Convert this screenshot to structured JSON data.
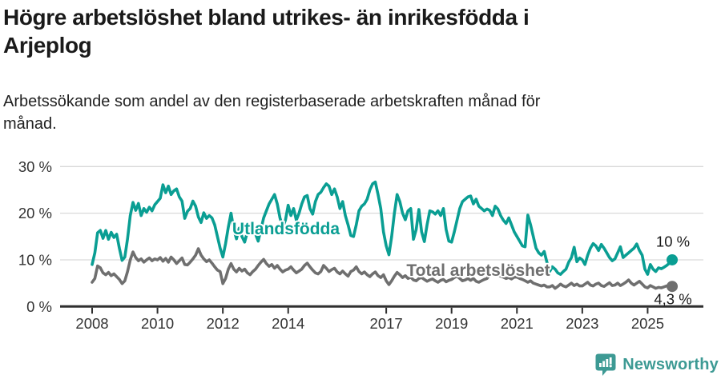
{
  "header": {
    "title": "Högre arbetslöshet bland utrikes- än inrikesfödda i\nArjeplog",
    "subtitle": "Arbetssökande som andel av den registerbaserade arbetskraften månad för\nmånad."
  },
  "chart_data": {
    "type": "line",
    "unit": "%",
    "frequency": "monthly",
    "x_start": "2008-01",
    "x_end": "2025-10",
    "ylim": [
      0,
      30
    ],
    "grid": "horizontal",
    "legend_position": "inline-labels",
    "y_ticks": [
      {
        "value": 0,
        "label": "0 %"
      },
      {
        "value": 10,
        "label": "10 %"
      },
      {
        "value": 20,
        "label": "20 %"
      },
      {
        "value": 30,
        "label": "30 %"
      }
    ],
    "x_ticks": [
      {
        "year": 2008,
        "label": "2008"
      },
      {
        "year": 2010,
        "label": "2010"
      },
      {
        "year": 2012,
        "label": "2012"
      },
      {
        "year": 2014,
        "label": "2014"
      },
      {
        "year": 2017,
        "label": "2017"
      },
      {
        "year": 2019,
        "label": "2019"
      },
      {
        "year": 2021,
        "label": "2021"
      },
      {
        "year": 2023,
        "label": "2023"
      },
      {
        "year": 2025,
        "label": "2025"
      }
    ],
    "series": [
      {
        "name": "Utlandsfödda",
        "color": "#0a9e93",
        "end_label": "10 %",
        "values": [
          9.0,
          11.5,
          15.8,
          16.3,
          14.6,
          16.3,
          14.4,
          15.9,
          14.8,
          15.5,
          12.5,
          9.9,
          10.6,
          14.5,
          19.5,
          22.3,
          20.6,
          22.1,
          19.5,
          21.0,
          20.2,
          21.3,
          20.5,
          21.8,
          22.5,
          23.2,
          26.1,
          24.4,
          25.8,
          24.0,
          24.8,
          25.2,
          23.5,
          22.6,
          18.9,
          20.4,
          21.0,
          22.6,
          21.5,
          19.2,
          18.0,
          20.1,
          18.9,
          19.5,
          19.0,
          17.5,
          15.0,
          12.5,
          10.6,
          13.5,
          17.0,
          20.0,
          16.5,
          14.5,
          16.8,
          15.0,
          13.8,
          16.0,
          17.0,
          15.5,
          15.5,
          14.0,
          16.5,
          19.0,
          20.5,
          22.0,
          23.0,
          24.0,
          22.0,
          19.0,
          17.0,
          18.5,
          21.7,
          19.5,
          21.0,
          18.5,
          20.0,
          22.0,
          23.5,
          23.8,
          21.0,
          19.8,
          22.5,
          24.0,
          24.5,
          25.5,
          26.3,
          25.8,
          24.0,
          25.2,
          23.5,
          21.0,
          22.5,
          19.5,
          17.5,
          15.2,
          15.0,
          17.5,
          20.5,
          21.5,
          22.0,
          23.0,
          25.0,
          26.3,
          26.7,
          24.0,
          21.0,
          16.0,
          13.0,
          11.1,
          15.0,
          20.0,
          24.0,
          22.5,
          20.0,
          18.6,
          20.5,
          21.0,
          14.4,
          16.5,
          20.8,
          16.0,
          13.9,
          17.5,
          20.5,
          20.3,
          19.8,
          20.5,
          19.5,
          21.0,
          16.5,
          14.0,
          13.8,
          16.0,
          18.5,
          21.0,
          22.5,
          23.0,
          23.5,
          23.7,
          22.0,
          23.0,
          21.5,
          21.0,
          20.5,
          20.9,
          20.6,
          19.5,
          21.5,
          20.9,
          19.5,
          18.5,
          17.8,
          19.0,
          17.5,
          16.0,
          15.0,
          14.0,
          13.0,
          12.8,
          19.6,
          17.5,
          15.0,
          12.5,
          11.5,
          11.0,
          11.8,
          9.5,
          7.5,
          8.5,
          8.0,
          7.2,
          6.9,
          7.5,
          8.0,
          9.5,
          10.5,
          12.7,
          9.6,
          10.4,
          10.0,
          9.0,
          11.0,
          12.5,
          13.5,
          13.0,
          12.0,
          13.3,
          12.5,
          11.5,
          10.5,
          9.8,
          10.2,
          11.5,
          12.8,
          10.5,
          11.0,
          11.5,
          12.0,
          12.5,
          13.4,
          12.0,
          11.0,
          8.0,
          6.9,
          9.0,
          8.0,
          7.5,
          8.3,
          8.1,
          8.4,
          8.8,
          9.3,
          10.0
        ]
      },
      {
        "name": "Total arbetslöshet",
        "color": "#6f6f6f",
        "end_label": "4,3 %",
        "values": [
          5.2,
          6.0,
          8.7,
          8.3,
          7.2,
          6.8,
          7.3,
          6.6,
          7.0,
          6.4,
          5.8,
          4.9,
          5.5,
          7.5,
          10.0,
          11.7,
          10.5,
          9.8,
          10.2,
          9.5,
          10.0,
          10.4,
          9.8,
          10.2,
          10.0,
          10.5,
          9.7,
          10.3,
          9.5,
          10.6,
          10.0,
          9.2,
          9.8,
          10.4,
          9.0,
          8.9,
          9.5,
          10.2,
          11.0,
          12.4,
          11.0,
          10.2,
          9.6,
          10.0,
          9.3,
          8.5,
          7.8,
          7.5,
          4.9,
          6.0,
          8.0,
          9.2,
          8.0,
          7.4,
          8.2,
          7.6,
          8.0,
          7.2,
          6.8,
          7.5,
          8.0,
          8.8,
          9.5,
          10.1,
          9.2,
          8.6,
          9.0,
          8.2,
          8.8,
          8.0,
          7.4,
          7.8,
          8.0,
          8.5,
          7.8,
          7.2,
          7.6,
          8.0,
          8.8,
          9.3,
          8.5,
          7.8,
          7.2,
          7.0,
          7.5,
          8.8,
          8.2,
          7.5,
          7.9,
          8.2,
          7.4,
          7.0,
          7.6,
          7.0,
          6.5,
          7.5,
          7.8,
          8.5,
          7.5,
          7.0,
          7.4,
          6.8,
          6.4,
          7.0,
          7.4,
          6.6,
          6.2,
          6.8,
          5.5,
          4.7,
          5.5,
          6.5,
          7.3,
          6.8,
          6.2,
          6.6,
          6.0,
          6.3,
          5.7,
          5.5,
          6.0,
          6.2,
          5.8,
          5.4,
          5.7,
          5.9,
          5.5,
          5.2,
          5.6,
          5.8,
          5.3,
          5.6,
          5.8,
          6.2,
          6.5,
          6.0,
          5.5,
          5.7,
          6.0,
          5.6,
          6.0,
          5.4,
          5.2,
          5.5,
          5.8,
          6.0,
          6.8,
          7.2,
          7.0,
          6.8,
          6.5,
          6.3,
          6.0,
          6.2,
          5.9,
          6.3,
          6.3,
          6.0,
          5.8,
          5.5,
          5.2,
          5.5,
          5.0,
          4.8,
          4.6,
          4.4,
          4.6,
          4.2,
          4.2,
          4.5,
          3.9,
          4.3,
          4.8,
          4.4,
          4.2,
          4.6,
          5.0,
          4.5,
          4.8,
          4.4,
          4.4,
          4.8,
          5.2,
          4.6,
          4.4,
          4.8,
          5.0,
          4.5,
          4.3,
          4.7,
          5.1,
          4.5,
          4.6,
          5.0,
          4.5,
          4.8,
          5.2,
          5.7,
          5.0,
          4.6,
          5.0,
          5.4,
          4.8,
          4.2,
          4.0,
          4.5,
          4.2,
          3.9,
          4.1,
          4.0,
          4.2,
          4.4,
          4.2,
          4.3
        ]
      }
    ],
    "colors": {
      "grid": "#d9d9d9",
      "axis": "#2f2f2f",
      "tick_text": "#333333",
      "annotation_text": "#1a1a1a"
    }
  },
  "footer": {
    "brand": "Newsworthy",
    "logo_color": "#3d9a94"
  }
}
